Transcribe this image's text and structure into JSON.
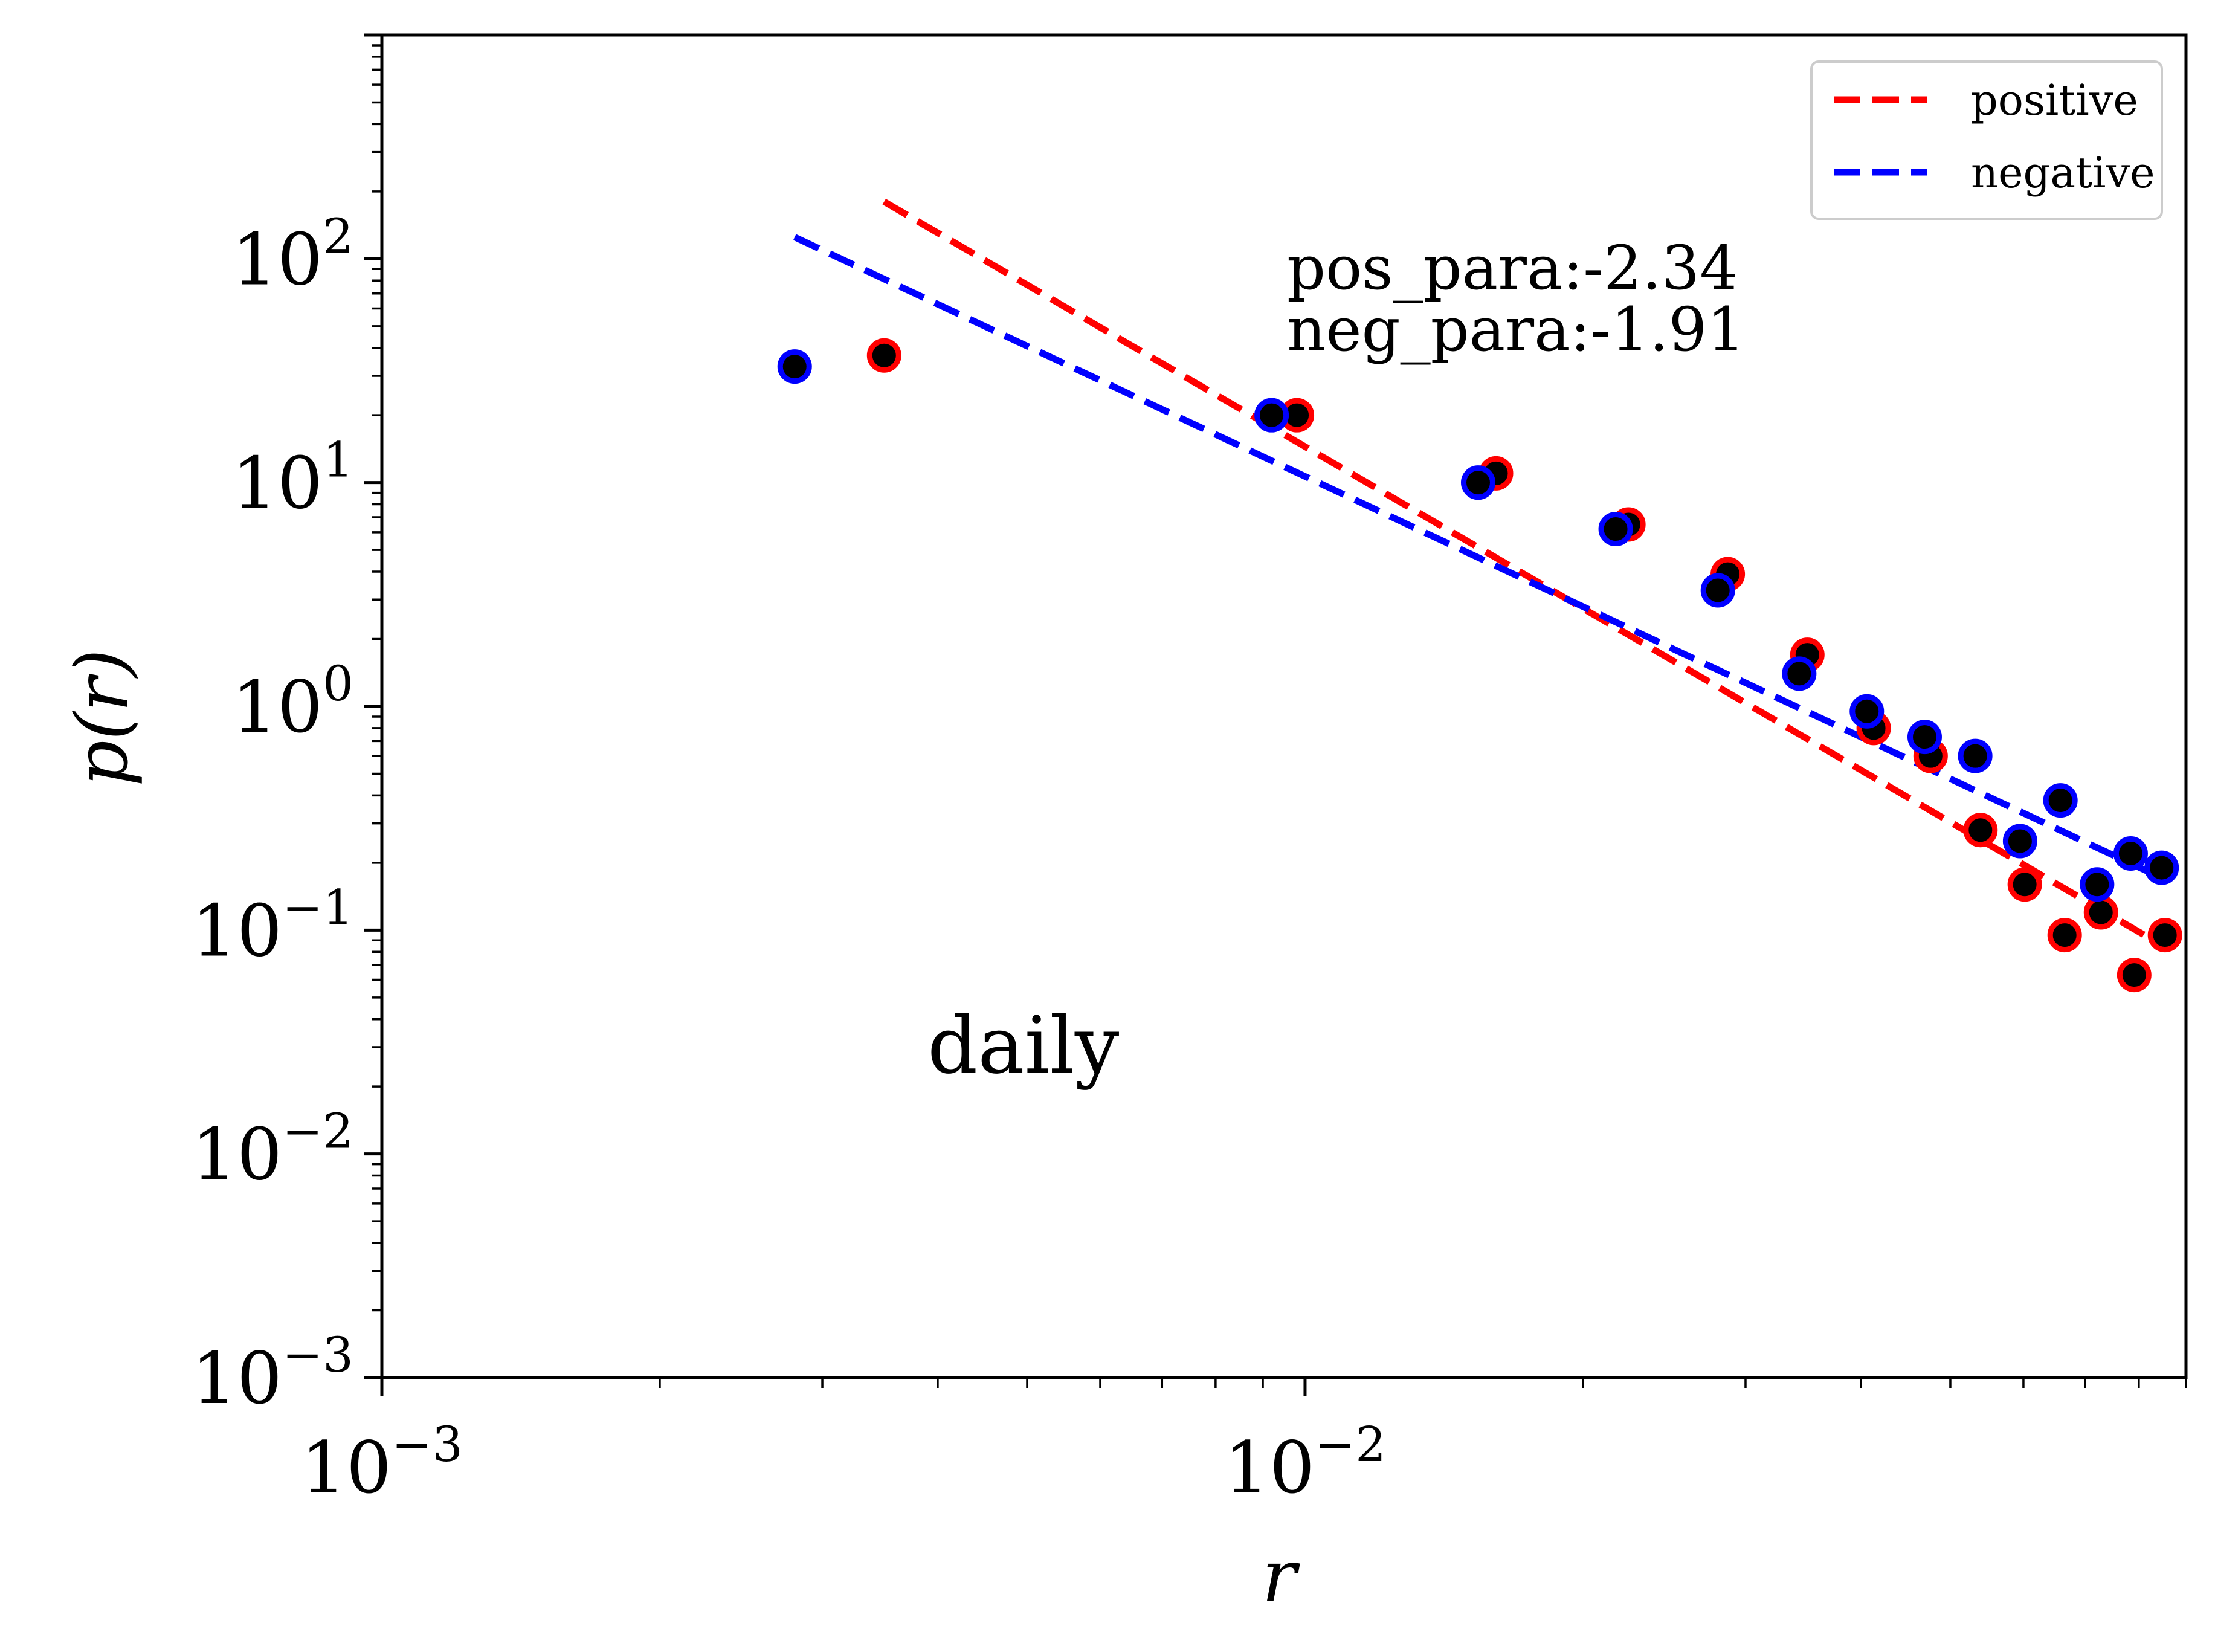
{
  "chart_data": {
    "type": "scatter",
    "xlabel": "r",
    "ylabel": "p(r)",
    "xscale": "log",
    "yscale": "log",
    "xlim": [
      0.001,
      0.09
    ],
    "ylim": [
      0.001,
      1000
    ],
    "grid": false,
    "legend_position": "top-right",
    "xticks": [
      {
        "base": "10",
        "exp": "−3",
        "value": 0.001
      },
      {
        "base": "10",
        "exp": "−2",
        "value": 0.01
      }
    ],
    "yticks": [
      {
        "base": "10",
        "exp": "−3",
        "value": 0.001
      },
      {
        "base": "10",
        "exp": "−2",
        "value": 0.01
      },
      {
        "base": "10",
        "exp": "−1",
        "value": 0.1
      },
      {
        "base": "10",
        "exp": "0",
        "value": 1
      },
      {
        "base": "10",
        "exp": "1",
        "value": 10
      },
      {
        "base": "10",
        "exp": "2",
        "value": 100
      }
    ],
    "annotations": {
      "pos_para": "pos_para:-2.34",
      "neg_para": "neg_para:-1.91",
      "period": "daily"
    },
    "fits": [
      {
        "name": "positive",
        "color": "#ff0000",
        "x": [
          0.0035,
          0.085
        ],
        "y": [
          180,
          0.085
        ]
      },
      {
        "name": "negative",
        "color": "#0000ff",
        "x": [
          0.0028,
          0.085
        ],
        "y": [
          125,
          0.17
        ]
      }
    ],
    "series": [
      {
        "edge_color": "#ff0000",
        "fill_color": "#000000",
        "x": [
          0.0035,
          0.0098,
          0.0161,
          0.0224,
          0.0287,
          0.035,
          0.0413,
          0.0476,
          0.0539,
          0.0602,
          0.0665,
          0.0728,
          0.0791,
          0.0854
        ],
        "y": [
          37,
          20,
          11,
          6.5,
          3.9,
          1.7,
          0.8,
          0.6,
          0.28,
          0.16,
          0.095,
          0.12,
          0.063,
          0.095
        ]
      },
      {
        "edge_color": "#0000ff",
        "fill_color": "#000000",
        "x": [
          0.0028,
          0.0092,
          0.0154,
          0.0217,
          0.028,
          0.0343,
          0.0406,
          0.0469,
          0.0532,
          0.0595,
          0.0658,
          0.0721,
          0.0784,
          0.0847
        ],
        "y": [
          33,
          20,
          10,
          6.2,
          3.3,
          1.4,
          0.95,
          0.73,
          0.6,
          0.25,
          0.38,
          0.16,
          0.22,
          0.19
        ]
      }
    ]
  },
  "ui": {
    "legend": {
      "positive": "positive",
      "negative": "negative"
    }
  }
}
